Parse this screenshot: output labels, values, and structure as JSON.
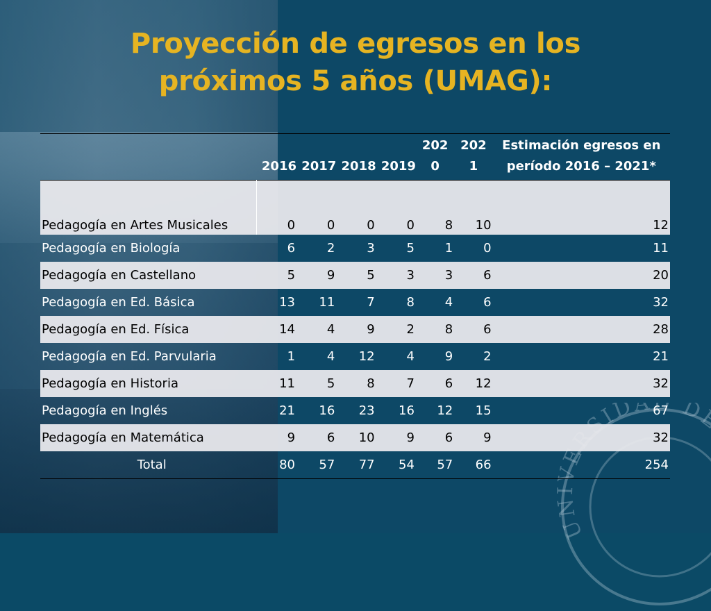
{
  "slide": {
    "title_line1": "Proyección de egresos en los",
    "title_line2": "próximos 5 años (UMAG):",
    "seal_text": "UNIVERSIDAD DE M"
  },
  "table": {
    "headers": [
      "2016",
      "2017",
      "2018",
      "2019",
      "202\n0",
      "202\n1",
      "Estimación egresos en período 2016 – 2021*"
    ],
    "rows": [
      {
        "name": "Pedagogía en Artes Musicales",
        "values": [
          "0",
          "0",
          "0",
          "0",
          "8",
          "10",
          "12"
        ]
      },
      {
        "name": "Pedagogía en Biología",
        "values": [
          "6",
          "2",
          "3",
          "5",
          "1",
          "0",
          "11"
        ]
      },
      {
        "name": "Pedagogía en Castellano",
        "values": [
          "5",
          "9",
          "5",
          "3",
          "3",
          "6",
          "20"
        ]
      },
      {
        "name": "Pedagogía en Ed. Básica",
        "values": [
          "13",
          "11",
          "7",
          "8",
          "4",
          "6",
          "32"
        ]
      },
      {
        "name": "Pedagogía en Ed. Física",
        "values": [
          "14",
          "4",
          "9",
          "2",
          "8",
          "6",
          "28"
        ]
      },
      {
        "name": "Pedagogía en Ed. Parvularia",
        "values": [
          "1",
          "4",
          "12",
          "4",
          "9",
          "2",
          "21"
        ]
      },
      {
        "name": "Pedagogía en Historia",
        "values": [
          "11",
          "5",
          "8",
          "7",
          "6",
          "12",
          "32"
        ]
      },
      {
        "name": "Pedagogía en Inglés",
        "values": [
          "21",
          "16",
          "23",
          "16",
          "12",
          "15",
          "67"
        ]
      },
      {
        "name": "Pedagogía en Matemática",
        "values": [
          "9",
          "6",
          "10",
          "9",
          "6",
          "9",
          "32"
        ]
      }
    ],
    "total": {
      "name": "Total",
      "values": [
        "80",
        "57",
        "77",
        "54",
        "57",
        "66",
        "254"
      ]
    }
  },
  "colors": {
    "title": "#e6b422",
    "background": "#0d4866",
    "row_light": "#e8e8ec"
  }
}
